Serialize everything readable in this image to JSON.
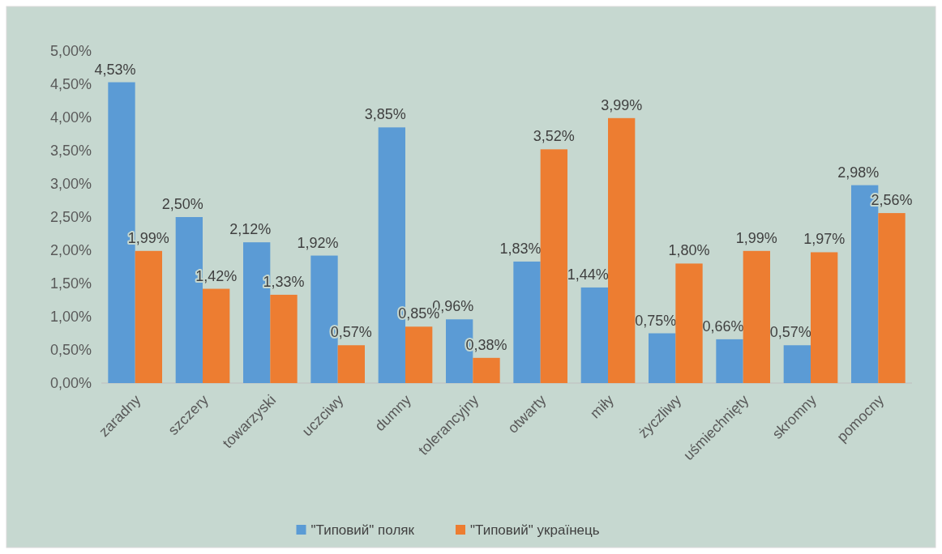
{
  "chart_data": {
    "type": "bar",
    "categories": [
      "zaradny",
      "szczery",
      "towarzyski",
      "uczciwy",
      "dumny",
      "tolerancyjny",
      "otwarty",
      "miły",
      "życzliwy",
      "uśmiechnięty",
      "skromny",
      "pomocny"
    ],
    "series": [
      {
        "name": "\"Типовий\" поляк",
        "color": "#5b9bd5",
        "values": [
          4.53,
          2.5,
          2.12,
          1.92,
          3.85,
          0.96,
          1.83,
          1.44,
          0.75,
          0.66,
          0.57,
          2.98
        ],
        "value_labels": [
          "4,53%",
          "2,50%",
          "2,12%",
          "1,92%",
          "3,85%",
          "0,96%",
          "1,83%",
          "1,44%",
          "0,75%",
          "0,66%",
          "0,57%",
          "2,98%"
        ]
      },
      {
        "name": "\"Типовий\" українець",
        "color": "#ed7d31",
        "values": [
          1.99,
          1.42,
          1.33,
          0.57,
          0.85,
          0.38,
          3.52,
          3.99,
          1.8,
          1.99,
          1.97,
          2.56
        ],
        "value_labels": [
          "1,99%",
          "1,42%",
          "1,33%",
          "0,57%",
          "0,85%",
          "0,38%",
          "3,52%",
          "3,99%",
          "1,80%",
          "1,99%",
          "1,97%",
          "2,56%"
        ]
      }
    ],
    "ylim": [
      0,
      5
    ],
    "yticks": [
      {
        "value": 0,
        "label": "0,00%"
      },
      {
        "value": 0.5,
        "label": "0,50%"
      },
      {
        "value": 1,
        "label": "1,00%"
      },
      {
        "value": 1.5,
        "label": "1,50%"
      },
      {
        "value": 2,
        "label": "2,00%"
      },
      {
        "value": 2.5,
        "label": "2,50%"
      },
      {
        "value": 3,
        "label": "3,00%"
      },
      {
        "value": 3.5,
        "label": "3,50%"
      },
      {
        "value": 4,
        "label": "4,00%"
      },
      {
        "value": 4.5,
        "label": "4,50%"
      },
      {
        "value": 5,
        "label": "5,00%"
      }
    ],
    "grid": false,
    "legend": "bottom"
  }
}
